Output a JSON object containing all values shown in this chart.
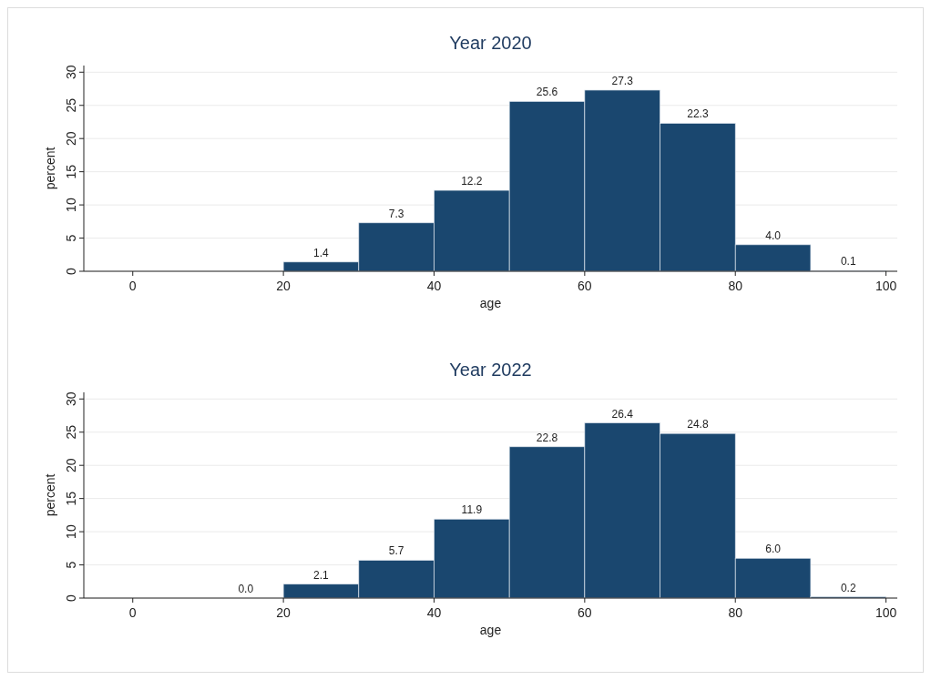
{
  "chart_data": [
    {
      "type": "histogram",
      "title": "Year 2020",
      "xlabel": "age",
      "ylabel": "percent",
      "bins": [
        20,
        30,
        40,
        50,
        60,
        70,
        80,
        90,
        100
      ],
      "values": [
        1.4,
        7.3,
        12.2,
        25.6,
        27.3,
        22.3,
        4.0,
        0.1
      ],
      "value_labels": [
        "1.4",
        "7.3",
        "12.2",
        "25.6",
        "27.3",
        "22.3",
        "4.0",
        "0.1"
      ],
      "color": "#1a476f",
      "xlim": [
        -6.5,
        101.5
      ],
      "xticks": [
        0,
        20,
        40,
        60,
        80,
        100
      ],
      "ylim": [
        0,
        31
      ],
      "yticks": [
        0,
        5,
        10,
        15,
        20,
        25,
        30
      ],
      "grid": "y"
    },
    {
      "type": "histogram",
      "title": "Year 2022",
      "xlabel": "age",
      "ylabel": "percent",
      "bins": [
        10,
        20,
        30,
        40,
        50,
        60,
        70,
        80,
        90,
        100
      ],
      "values": [
        0.0,
        2.1,
        5.7,
        11.9,
        22.8,
        26.4,
        24.8,
        6.0,
        0.2
      ],
      "value_labels": [
        "0.0",
        "2.1",
        "5.7",
        "11.9",
        "22.8",
        "26.4",
        "24.8",
        "6.0",
        "0.2"
      ],
      "color": "#1a476f",
      "xlim": [
        -6.5,
        101.5
      ],
      "xticks": [
        0,
        20,
        40,
        60,
        80,
        100
      ],
      "ylim": [
        0,
        31
      ],
      "yticks": [
        0,
        5,
        10,
        15,
        20,
        25,
        30
      ],
      "grid": "y"
    }
  ]
}
